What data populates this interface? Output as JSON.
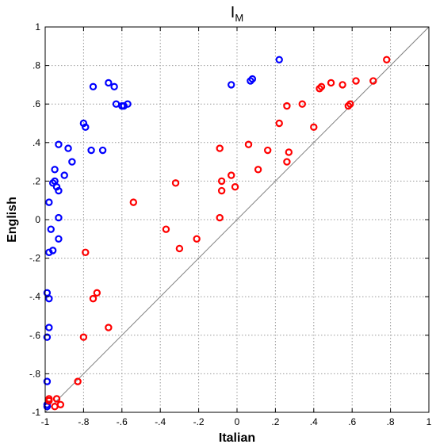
{
  "chart_data": {
    "type": "scatter",
    "title": "I",
    "title_subscript": "M",
    "xlabel": "Italian",
    "ylabel": "English",
    "xlim": [
      -1,
      1
    ],
    "ylim": [
      -1,
      1
    ],
    "xticks": [
      -1,
      -0.8,
      -0.6,
      -0.4,
      -0.2,
      0,
      0.2,
      0.4,
      0.6,
      0.8,
      1
    ],
    "yticks": [
      -1,
      -0.8,
      -0.6,
      -0.4,
      -0.2,
      0,
      0.2,
      0.4,
      0.6,
      0.8,
      1
    ],
    "grid": true,
    "reference_line": {
      "from": [
        -1,
        -1
      ],
      "to": [
        1,
        1
      ],
      "color": "#808080"
    },
    "series": [
      {
        "color": "#0000ff",
        "points": [
          [
            0.22,
            0.83
          ],
          [
            -0.03,
            0.7
          ],
          [
            0.07,
            0.72
          ],
          [
            0.08,
            0.73
          ],
          [
            -0.67,
            0.71
          ],
          [
            -0.75,
            0.69
          ],
          [
            -0.64,
            0.69
          ],
          [
            -0.63,
            0.6
          ],
          [
            -0.6,
            0.59
          ],
          [
            -0.59,
            0.59
          ],
          [
            -0.57,
            0.6
          ],
          [
            -0.8,
            0.5
          ],
          [
            -0.79,
            0.48
          ],
          [
            -0.76,
            0.36
          ],
          [
            -0.7,
            0.36
          ],
          [
            -0.93,
            0.39
          ],
          [
            -0.88,
            0.37
          ],
          [
            -0.86,
            0.3
          ],
          [
            -0.95,
            0.26
          ],
          [
            -0.9,
            0.23
          ],
          [
            -0.96,
            0.19
          ],
          [
            -0.95,
            0.2
          ],
          [
            -0.94,
            0.17
          ],
          [
            -0.93,
            0.15
          ],
          [
            -0.98,
            0.09
          ],
          [
            -0.93,
            0.01
          ],
          [
            -0.97,
            -0.05
          ],
          [
            -0.93,
            -0.1
          ],
          [
            -0.96,
            -0.16
          ],
          [
            -0.98,
            -0.17
          ],
          [
            -0.99,
            -0.38
          ],
          [
            -0.98,
            -0.41
          ],
          [
            -0.98,
            -0.56
          ],
          [
            -0.99,
            -0.61
          ],
          [
            -0.99,
            -0.84
          ],
          [
            -0.99,
            -0.96
          ],
          [
            -0.99,
            -0.97
          ]
        ]
      },
      {
        "color": "#ff0000",
        "points": [
          [
            0.78,
            0.83
          ],
          [
            0.62,
            0.72
          ],
          [
            0.71,
            0.72
          ],
          [
            0.49,
            0.71
          ],
          [
            0.55,
            0.7
          ],
          [
            0.44,
            0.69
          ],
          [
            0.43,
            0.68
          ],
          [
            0.59,
            0.6
          ],
          [
            0.58,
            0.59
          ],
          [
            0.34,
            0.6
          ],
          [
            0.26,
            0.59
          ],
          [
            0.22,
            0.5
          ],
          [
            0.4,
            0.48
          ],
          [
            0.06,
            0.39
          ],
          [
            -0.09,
            0.37
          ],
          [
            0.16,
            0.36
          ],
          [
            0.27,
            0.35
          ],
          [
            0.26,
            0.3
          ],
          [
            0.11,
            0.26
          ],
          [
            -0.03,
            0.23
          ],
          [
            -0.08,
            0.2
          ],
          [
            -0.01,
            0.17
          ],
          [
            -0.08,
            0.15
          ],
          [
            -0.32,
            0.19
          ],
          [
            -0.54,
            0.09
          ],
          [
            -0.09,
            0.01
          ],
          [
            -0.37,
            -0.05
          ],
          [
            -0.21,
            -0.1
          ],
          [
            -0.3,
            -0.15
          ],
          [
            -0.79,
            -0.17
          ],
          [
            -0.73,
            -0.38
          ],
          [
            -0.75,
            -0.41
          ],
          [
            -0.67,
            -0.56
          ],
          [
            -0.8,
            -0.61
          ],
          [
            -0.83,
            -0.84
          ],
          [
            -0.94,
            -0.93
          ],
          [
            -0.92,
            -0.96
          ],
          [
            -0.95,
            -0.97
          ],
          [
            -0.98,
            -0.93
          ],
          [
            -0.98,
            -0.94
          ]
        ]
      }
    ]
  }
}
